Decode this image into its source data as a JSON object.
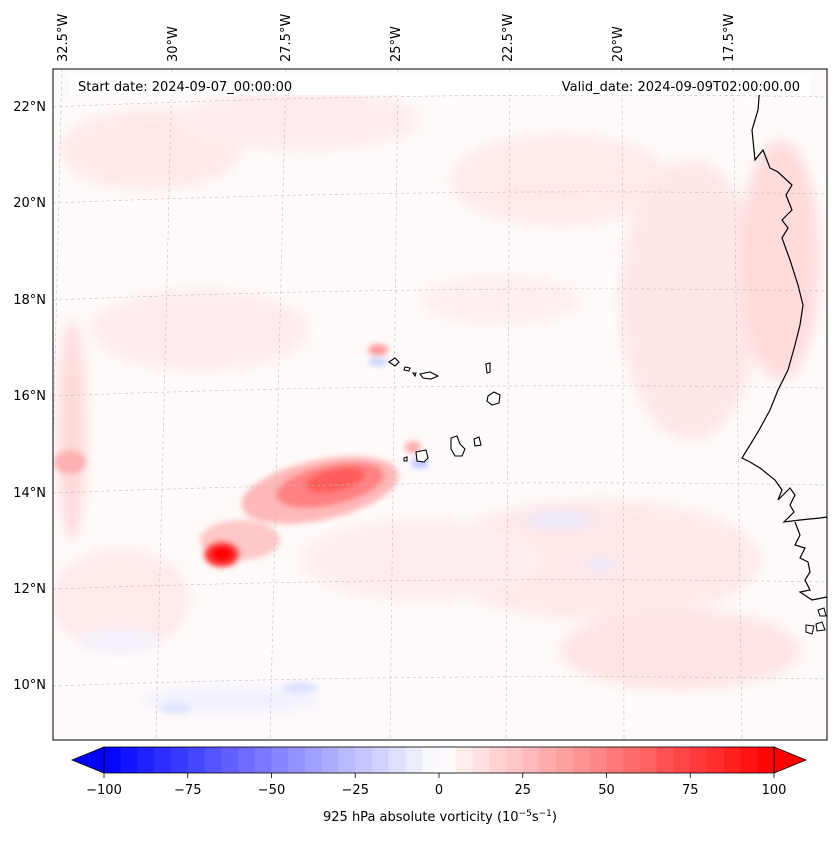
{
  "map": {
    "start_date_text": "Start date: 2024-09-07_00:00:00",
    "valid_date_text": "Valid_date: 2024-09-09T02:00:00.00",
    "lon_labels": [
      "32.5°W",
      "30°W",
      "27.5°W",
      "25°W",
      "22.5°W",
      "20°W",
      "17.5°W"
    ],
    "lat_labels": [
      "22°N",
      "20°N",
      "18°N",
      "16°N",
      "14°N",
      "12°N",
      "10°N"
    ],
    "colors": {
      "positive_max": "#ff0000",
      "negative_max": "#0000ff",
      "zero": "#ffffff",
      "coastline": "#000000",
      "gridline": "#bbbbbb"
    }
  },
  "colorbar": {
    "label_prefix": "925 hPa absolute vorticity (10",
    "label_exp1": "−5",
    "label_mid": "s",
    "label_exp2": "−1",
    "label_suffix": ")",
    "ticks": [
      "−100",
      "−75",
      "−50",
      "−25",
      "0",
      "25",
      "50",
      "75",
      "100"
    ],
    "range": [
      -100,
      100
    ],
    "step": 5
  }
}
